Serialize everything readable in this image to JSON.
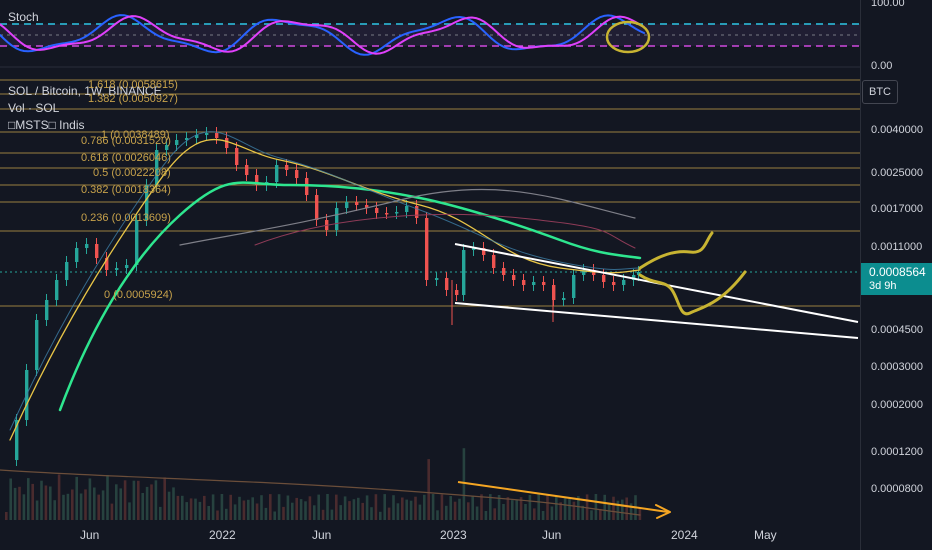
{
  "indicator_pane": {
    "label": "Stoch",
    "levels": [
      "100.00",
      "0.00"
    ]
  },
  "legend": {
    "symbol": "SOL / Bitcoin, 1W, BINANCE",
    "volume": "Vol · SOL",
    "indicator": "□MSTS□ Indis"
  },
  "fib_levels": [
    {
      "label": "1.618 (0.0058615)"
    },
    {
      "label": "1.382 (0.0050927)"
    },
    {
      "label": "1 (0.0038489)"
    },
    {
      "label": "0.786 (0.0031520)"
    },
    {
      "label": "0.618 (0.0026046)"
    },
    {
      "label": "0.5 (0.0022208)"
    },
    {
      "label": "0.382 (0.0018364)"
    },
    {
      "label": "0.236 (0.0013609)"
    },
    {
      "label": "0 (0.0005924)"
    }
  ],
  "price_axis": {
    "currency_button": "BTC",
    "ticks": [
      "0.0040000",
      "0.0025000",
      "0.0017000",
      "0.0011000",
      "0.0004500",
      "0.0003000",
      "0.0002000",
      "0.0001200",
      "0.0000800"
    ],
    "current_price": "0.0008564",
    "countdown": "3d 9h"
  },
  "time_axis": [
    "Jun",
    "2022",
    "Jun",
    "2023",
    "Jun",
    "2024",
    "May"
  ],
  "colors": {
    "background": "#131722",
    "up": "#26a69a",
    "down": "#ef5350",
    "stoch_k": "#2962ff",
    "stoch_d": "#e040fb",
    "fib": "#c7a24b",
    "annotation_yellow": "#c8b432",
    "annotation_orange": "#f5a623",
    "trendline": "#ffffff",
    "ma_green": "#2ee68f"
  }
}
